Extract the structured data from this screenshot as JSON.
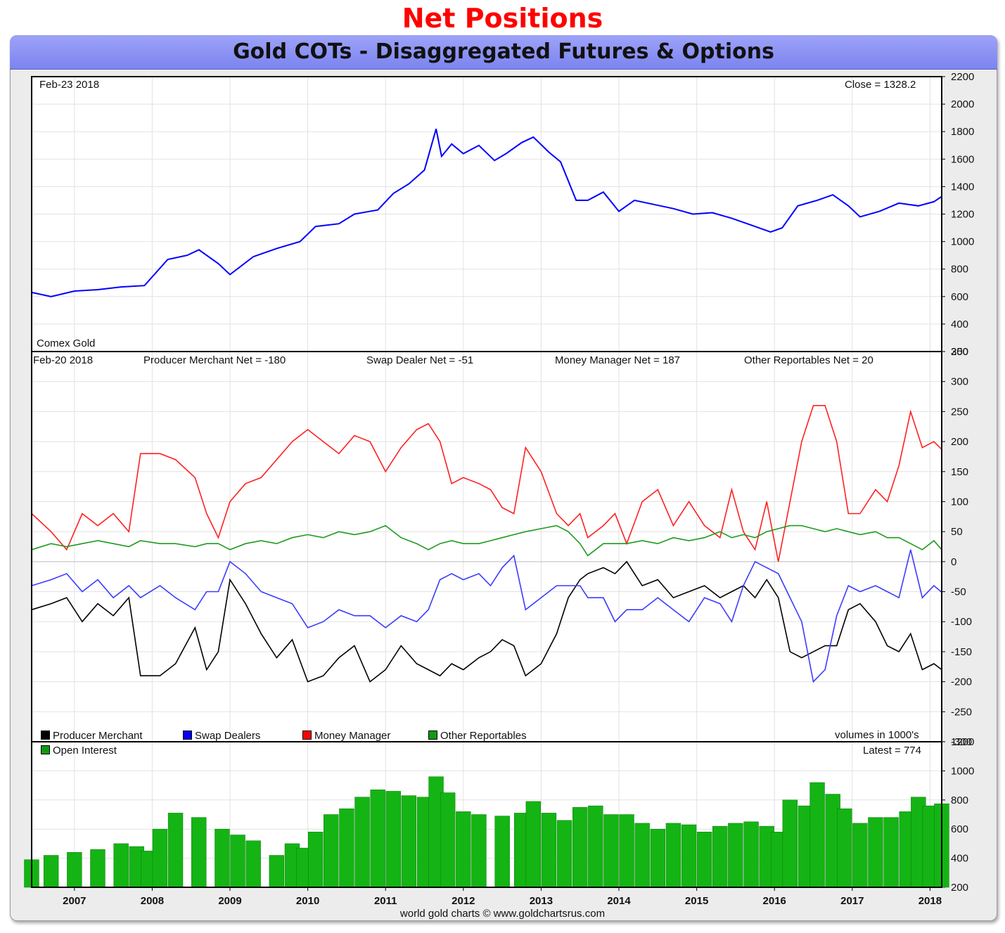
{
  "page": {
    "top_title": "Net Positions",
    "chart_title": "Gold COTs - Disaggregated Futures & Options",
    "footer": "world gold charts © www.goldchartsrus.com"
  },
  "colors": {
    "price_line": "#0000ff",
    "producer": "#000000",
    "swap": "#3b3bff",
    "money": "#ff2020",
    "other": "#1f9a1f",
    "oi_bar": "#14b414",
    "top_title": "#ff0000"
  },
  "panels": {
    "price": {
      "date_label": "Feb-23  2018",
      "close_label": "Close = 1328.2",
      "name_label": "Comex Gold"
    },
    "cot": {
      "date_label": "Feb-20  2018",
      "producer_label": "Producer Merchant Net = -180",
      "swap_label": "Swap Dealer Net = -51",
      "money_label": "Money Manager Net = 187",
      "other_label": "Other Reportables Net = 20",
      "legend": [
        "Producer Merchant",
        "Swap Dealers",
        "Money Manager",
        "Other Reportables"
      ],
      "units_label": "volumes in 1000's"
    },
    "oi": {
      "legend": "Open Interest",
      "latest_label": "Latest = 774"
    }
  },
  "chart_data": [
    {
      "type": "line",
      "title": "Comex Gold",
      "ylim": [
        200,
        2200
      ],
      "yticks": [
        "2200",
        "2000",
        "1800",
        "1600",
        "1400",
        "1200",
        "1000",
        "800",
        "600",
        "400",
        "200"
      ],
      "x": [
        2006.45,
        2006.7,
        2007.0,
        2007.3,
        2007.6,
        2007.9,
        2008.2,
        2008.45,
        2008.6,
        2008.85,
        2009.0,
        2009.3,
        2009.6,
        2009.9,
        2010.1,
        2010.4,
        2010.6,
        2010.9,
        2011.1,
        2011.3,
        2011.5,
        2011.65,
        2011.72,
        2011.85,
        2012.0,
        2012.2,
        2012.4,
        2012.55,
        2012.75,
        2012.9,
        2013.1,
        2013.25,
        2013.45,
        2013.6,
        2013.8,
        2014.0,
        2014.2,
        2014.45,
        2014.7,
        2014.95,
        2015.2,
        2015.45,
        2015.65,
        2015.95,
        2016.1,
        2016.3,
        2016.55,
        2016.75,
        2016.95,
        2017.1,
        2017.35,
        2017.6,
        2017.85,
        2018.05,
        2018.15
      ],
      "values": [
        630,
        600,
        640,
        650,
        670,
        680,
        870,
        900,
        940,
        840,
        760,
        890,
        950,
        1000,
        1110,
        1130,
        1200,
        1230,
        1350,
        1420,
        1520,
        1820,
        1620,
        1710,
        1640,
        1700,
        1590,
        1640,
        1720,
        1760,
        1650,
        1580,
        1300,
        1300,
        1360,
        1220,
        1300,
        1270,
        1240,
        1200,
        1210,
        1170,
        1130,
        1070,
        1100,
        1260,
        1300,
        1340,
        1260,
        1180,
        1220,
        1280,
        1260,
        1290,
        1328
      ]
    },
    {
      "type": "line",
      "title": "Net Positions",
      "ylim": [
        -300,
        350
      ],
      "yticks": [
        "350",
        "300",
        "250",
        "200",
        "150",
        "100",
        "50",
        "0",
        "-50",
        "-100",
        "-150",
        "-200",
        "-250",
        "-300"
      ],
      "units": "volumes in 1000's",
      "x": [
        2006.45,
        2006.7,
        2006.9,
        2007.1,
        2007.3,
        2007.5,
        2007.7,
        2007.85,
        2008.1,
        2008.3,
        2008.55,
        2008.7,
        2008.85,
        2009.0,
        2009.2,
        2009.4,
        2009.6,
        2009.8,
        2010.0,
        2010.2,
        2010.4,
        2010.6,
        2010.8,
        2011.0,
        2011.2,
        2011.4,
        2011.55,
        2011.7,
        2011.85,
        2012.0,
        2012.2,
        2012.35,
        2012.5,
        2012.65,
        2012.8,
        2013.0,
        2013.2,
        2013.35,
        2013.5,
        2013.6,
        2013.8,
        2013.95,
        2014.1,
        2014.3,
        2014.5,
        2014.7,
        2014.9,
        2015.1,
        2015.3,
        2015.45,
        2015.6,
        2015.75,
        2015.9,
        2016.05,
        2016.2,
        2016.35,
        2016.5,
        2016.65,
        2016.8,
        2016.95,
        2017.1,
        2017.3,
        2017.45,
        2017.6,
        2017.75,
        2017.9,
        2018.05,
        2018.15
      ],
      "series": [
        {
          "name": "Producer Merchant",
          "values": [
            -80,
            -70,
            -60,
            -100,
            -70,
            -90,
            -60,
            -190,
            -190,
            -170,
            -110,
            -180,
            -150,
            -30,
            -70,
            -120,
            -160,
            -130,
            -200,
            -190,
            -160,
            -140,
            -200,
            -180,
            -140,
            -170,
            -180,
            -190,
            -170,
            -180,
            -160,
            -150,
            -130,
            -140,
            -190,
            -170,
            -120,
            -60,
            -30,
            -20,
            -10,
            -20,
            0,
            -40,
            -30,
            -60,
            -50,
            -40,
            -60,
            -50,
            -40,
            -60,
            -30,
            -60,
            -150,
            -160,
            -150,
            -140,
            -140,
            -80,
            -70,
            -100,
            -140,
            -150,
            -120,
            -180,
            -170,
            -180
          ]
        },
        {
          "name": "Swap Dealers",
          "values": [
            -40,
            -30,
            -20,
            -50,
            -30,
            -60,
            -40,
            -60,
            -40,
            -60,
            -80,
            -50,
            -50,
            0,
            -20,
            -50,
            -60,
            -70,
            -110,
            -100,
            -80,
            -90,
            -90,
            -110,
            -90,
            -100,
            -80,
            -30,
            -20,
            -30,
            -20,
            -40,
            -10,
            10,
            -80,
            -60,
            -40,
            -40,
            -40,
            -60,
            -60,
            -100,
            -80,
            -80,
            -60,
            -80,
            -100,
            -60,
            -70,
            -100,
            -40,
            0,
            -10,
            -20,
            -60,
            -100,
            -200,
            -180,
            -90,
            -40,
            -50,
            -40,
            -50,
            -60,
            20,
            -60,
            -40,
            -51
          ]
        },
        {
          "name": "Money Manager",
          "values": [
            80,
            50,
            20,
            80,
            60,
            80,
            50,
            180,
            180,
            170,
            140,
            80,
            40,
            100,
            130,
            140,
            170,
            200,
            220,
            200,
            180,
            210,
            200,
            150,
            190,
            220,
            230,
            200,
            130,
            140,
            130,
            120,
            90,
            80,
            190,
            150,
            80,
            60,
            80,
            40,
            60,
            80,
            30,
            100,
            120,
            60,
            100,
            60,
            40,
            120,
            50,
            20,
            100,
            0,
            100,
            200,
            260,
            260,
            200,
            80,
            80,
            120,
            100,
            160,
            250,
            190,
            200,
            187
          ]
        },
        {
          "name": "Other Reportables",
          "values": [
            20,
            30,
            25,
            30,
            35,
            30,
            25,
            35,
            30,
            30,
            25,
            30,
            30,
            20,
            30,
            35,
            30,
            40,
            45,
            40,
            50,
            45,
            50,
            60,
            40,
            30,
            20,
            30,
            35,
            30,
            30,
            35,
            40,
            45,
            50,
            55,
            60,
            50,
            30,
            10,
            30,
            30,
            30,
            35,
            30,
            40,
            35,
            40,
            50,
            40,
            45,
            40,
            50,
            55,
            60,
            60,
            55,
            50,
            55,
            50,
            45,
            50,
            40,
            40,
            30,
            20,
            35,
            20
          ]
        }
      ]
    },
    {
      "type": "bar",
      "title": "Open Interest",
      "ylim": [
        200,
        1200
      ],
      "yticks": [
        "1200",
        "1000",
        "800",
        "600",
        "400",
        "200"
      ],
      "x": [
        2006.45,
        2006.7,
        2007.0,
        2007.3,
        2007.6,
        2007.8,
        2007.95,
        2008.1,
        2008.3,
        2008.6,
        2008.9,
        2009.1,
        2009.3,
        2009.6,
        2009.8,
        2009.95,
        2010.1,
        2010.3,
        2010.5,
        2010.7,
        2010.9,
        2011.1,
        2011.3,
        2011.5,
        2011.65,
        2011.8,
        2012.0,
        2012.2,
        2012.5,
        2012.75,
        2012.9,
        2013.1,
        2013.3,
        2013.5,
        2013.7,
        2013.9,
        2014.1,
        2014.3,
        2014.5,
        2014.7,
        2014.9,
        2015.1,
        2015.3,
        2015.5,
        2015.7,
        2015.9,
        2016.05,
        2016.2,
        2016.4,
        2016.55,
        2016.75,
        2016.9,
        2017.1,
        2017.3,
        2017.5,
        2017.7,
        2017.85,
        2018.0,
        2018.15
      ],
      "values": [
        390,
        420,
        440,
        460,
        500,
        480,
        450,
        600,
        710,
        680,
        600,
        560,
        520,
        420,
        500,
        470,
        580,
        700,
        740,
        820,
        870,
        860,
        830,
        820,
        960,
        850,
        720,
        700,
        690,
        710,
        790,
        710,
        660,
        750,
        760,
        700,
        700,
        640,
        600,
        640,
        630,
        580,
        620,
        640,
        650,
        620,
        580,
        800,
        760,
        920,
        840,
        740,
        640,
        680,
        680,
        720,
        820,
        760,
        774
      ]
    }
  ],
  "x_axis": {
    "years": [
      "2007",
      "2008",
      "2009",
      "2010",
      "2011",
      "2012",
      "2013",
      "2014",
      "2015",
      "2016",
      "2017",
      "2018"
    ],
    "range": [
      2006.45,
      2018.15
    ]
  }
}
